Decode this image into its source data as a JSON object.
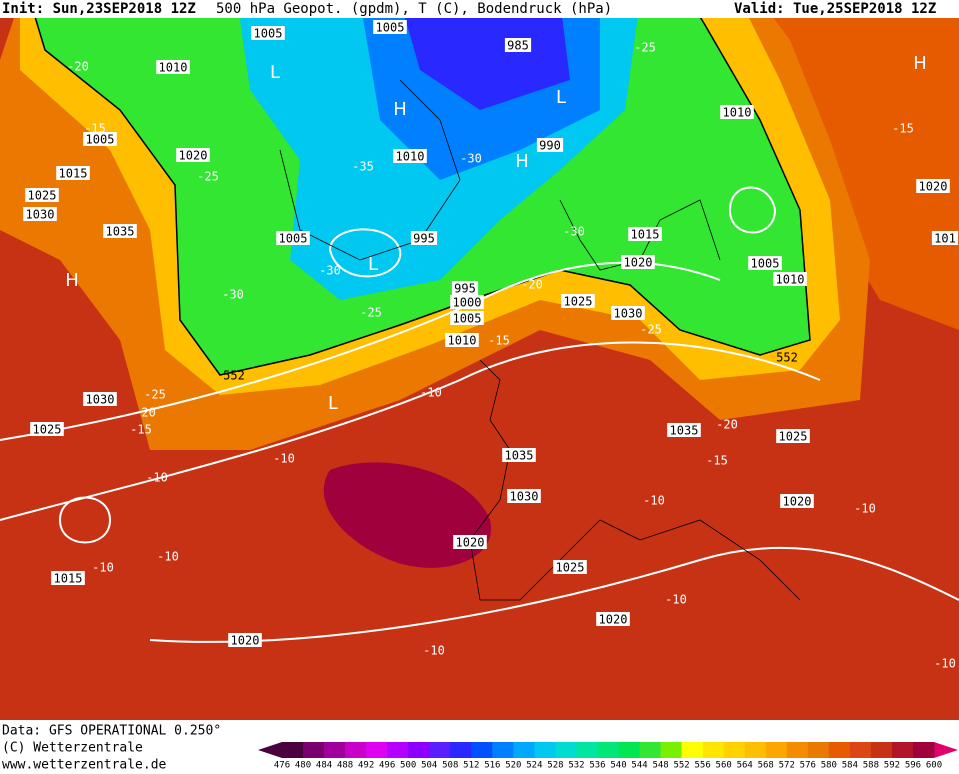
{
  "header": {
    "init": "Init: Sun,23SEP2018 12Z",
    "title": "500 hPa Geopot. (gpdm), T (C), Bodendruck (hPa)",
    "valid": "Valid: Tue,25SEP2018 12Z"
  },
  "footer": {
    "data_source": "Data: GFS OPERATIONAL 0.250°",
    "copyright": "(C) Wetterzentrale",
    "url": "www.wetterzentrale.de"
  },
  "map_labels": {
    "isobars": [
      "1005",
      "1005",
      "985",
      "1010",
      "1005",
      "1020",
      "1010",
      "990",
      "1015",
      "1025",
      "1030",
      "1035",
      "1005",
      "995",
      "1015",
      "1020",
      "1005",
      "1010",
      "1010",
      "1020",
      "101",
      "995",
      "1000",
      "1005",
      "1010",
      "1025",
      "1030",
      "1030",
      "1025",
      "1035",
      "1025",
      "1035",
      "1030",
      "1020",
      "1020",
      "1025",
      "1015",
      "1020",
      "1020"
    ],
    "isotherms": [
      "-20",
      "-15",
      "-25",
      "-35",
      "-30",
      "-25",
      "-15",
      "-30",
      "-30",
      "-30",
      "-25",
      "-20",
      "-15",
      "-25",
      "-25",
      "-20",
      "-15",
      "-10",
      "-10",
      "-10",
      "-20",
      "-15",
      "-10",
      "-10",
      "-10",
      "-10",
      "-10",
      "-10",
      "-10"
    ],
    "geopotential": [
      "552",
      "552"
    ],
    "pressure_centers": [
      "L",
      "H",
      "L",
      "H",
      "L",
      "H",
      "L",
      "H"
    ]
  },
  "colorbar": {
    "ticks": [
      476,
      480,
      484,
      488,
      492,
      496,
      500,
      504,
      508,
      512,
      516,
      520,
      524,
      528,
      532,
      536,
      540,
      544,
      548,
      552,
      556,
      560,
      564,
      568,
      572,
      576,
      580,
      584,
      588,
      592,
      596,
      600
    ],
    "colors": [
      "#4b0040",
      "#7a006e",
      "#a0009c",
      "#c800c8",
      "#e000f0",
      "#b400ff",
      "#8c00ff",
      "#5a1eff",
      "#2828ff",
      "#0050ff",
      "#0080ff",
      "#00a8ff",
      "#00c8f0",
      "#00dcd2",
      "#00e6a0",
      "#00e678",
      "#00e650",
      "#32e632",
      "#78f000",
      "#ffff00",
      "#ffe600",
      "#ffd200",
      "#ffbe00",
      "#ffa500",
      "#f58c00",
      "#eb7800",
      "#e65a00",
      "#dc4614",
      "#c83214",
      "#b41428",
      "#a0003c"
    ]
  }
}
